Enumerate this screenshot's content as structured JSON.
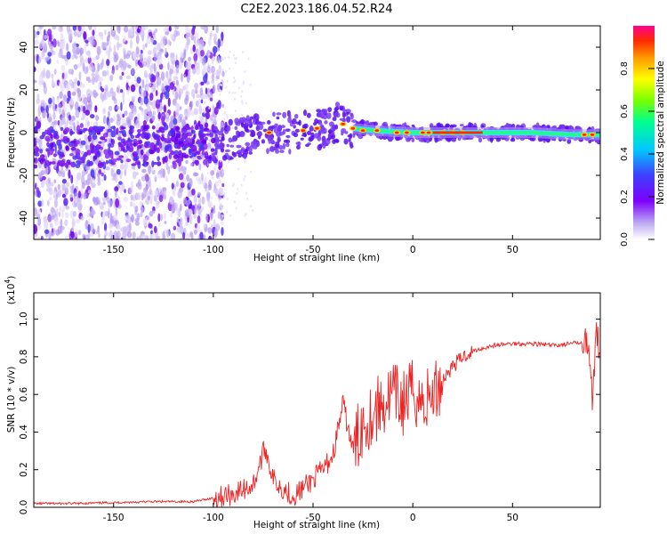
{
  "title": "C2E2.2023.186.04.52.R24",
  "chart_data": [
    {
      "type": "heatmap",
      "description_label": "spectrogram",
      "xlabel": "Height of straight line (km)",
      "ylabel": "Frequency (Hz)",
      "xlim": [
        -190,
        94
      ],
      "ylim": [
        -50,
        50
      ],
      "x_ticks": [
        -150,
        -100,
        -50,
        0,
        50
      ],
      "x_tick_labels": [
        "-150",
        "-100",
        "-50",
        "0",
        "50"
      ],
      "y_ticks": [
        -40,
        -20,
        0,
        20,
        40
      ],
      "y_tick_labels": [
        "-40",
        "-20",
        "0",
        "20",
        "40"
      ],
      "ridge": {
        "x": [
          -190,
          -120,
          -105,
          -90,
          -75,
          -60,
          -45,
          -35,
          -30,
          -20,
          0,
          20,
          40,
          60,
          80,
          94
        ],
        "y": [
          -7,
          -6,
          -5,
          -4,
          0,
          0,
          2,
          5,
          2,
          1,
          0,
          0,
          0,
          0,
          -1,
          -1
        ]
      },
      "colorbar": {
        "label": "Normalized spectral amplitude",
        "range": [
          0,
          1
        ],
        "ticks": [
          0.0,
          0.2,
          0.4,
          0.6,
          0.8
        ],
        "tick_labels": [
          "0.0",
          "0.2",
          "0.4",
          "0.6",
          "0.8"
        ],
        "colors": [
          "#ffffff",
          "#b9a6f2",
          "#7f00ff",
          "#3f3fff",
          "#00c8ff",
          "#00ff90",
          "#78ff00",
          "#ffff00",
          "#ff9a00",
          "#ff2a00",
          "#ff0090"
        ]
      }
    },
    {
      "type": "line",
      "xlabel": "Height of straight line (km)",
      "ylabel": "SNR (10 * v/v)",
      "scale_label": "(x10",
      "scale_exp": "4",
      "scale_close": ")",
      "xlim": [
        -190,
        94
      ],
      "ylim": [
        0,
        1.14
      ],
      "x_ticks": [
        -150,
        -100,
        -50,
        0,
        50
      ],
      "x_tick_labels": [
        "-150",
        "-100",
        "-50",
        "0",
        "50"
      ],
      "y_ticks": [
        0.0,
        0.2,
        0.4,
        0.6,
        0.8,
        1.0
      ],
      "y_tick_labels": [
        "0.0",
        "0.2",
        "0.4",
        "0.6",
        "0.8",
        "1.0"
      ],
      "series": [
        {
          "name": "SNR",
          "color": "#ee2222",
          "x": [
            -190,
            -170,
            -150,
            -130,
            -110,
            -100,
            -90,
            -80,
            -74,
            -70,
            -65,
            -60,
            -55,
            -50,
            -45,
            -40,
            -35,
            -30,
            -25,
            -20,
            -15,
            -10,
            -5,
            0,
            5,
            10,
            15,
            20,
            25,
            30,
            40,
            50,
            60,
            70,
            80,
            85,
            88,
            90,
            92,
            94
          ],
          "y": [
            0.02,
            0.02,
            0.025,
            0.03,
            0.03,
            0.05,
            0.07,
            0.12,
            0.32,
            0.15,
            0.1,
            0.06,
            0.1,
            0.15,
            0.2,
            0.28,
            0.55,
            0.3,
            0.45,
            0.5,
            0.55,
            0.6,
            0.55,
            0.62,
            0.55,
            0.6,
            0.68,
            0.75,
            0.8,
            0.83,
            0.86,
            0.87,
            0.87,
            0.86,
            0.87,
            0.88,
            0.88,
            0.55,
            0.9,
            0.85
          ]
        }
      ]
    }
  ]
}
